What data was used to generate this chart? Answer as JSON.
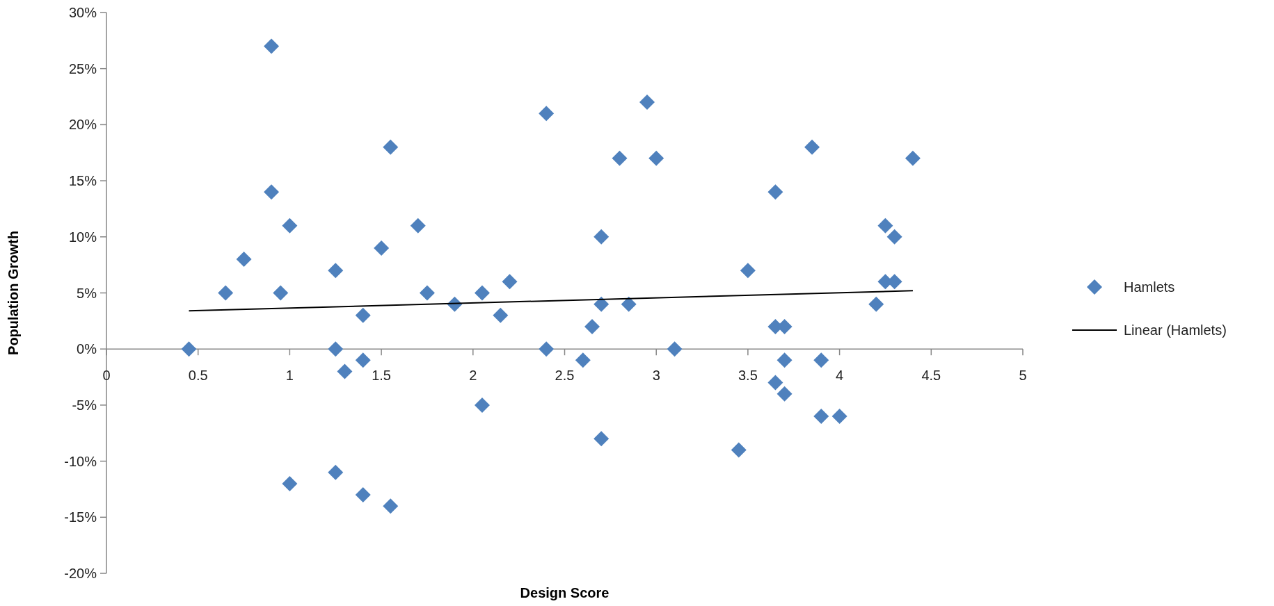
{
  "chart_data": {
    "type": "scatter",
    "xlabel": "Design Score",
    "ylabel": "Population Growth",
    "xlim": [
      0,
      5
    ],
    "xticks": [
      0,
      0.5,
      1,
      1.5,
      2,
      2.5,
      3,
      3.5,
      4,
      4.5,
      5
    ],
    "ylim": [
      -20,
      30
    ],
    "yticks": [
      {
        "value": -20,
        "label": "-20%"
      },
      {
        "value": -15,
        "label": "-15%"
      },
      {
        "value": -10,
        "label": "-10%"
      },
      {
        "value": -5,
        "label": "-5%"
      },
      {
        "value": 0,
        "label": "0%"
      },
      {
        "value": 5,
        "label": "5%"
      },
      {
        "value": 10,
        "label": "10%"
      },
      {
        "value": 15,
        "label": "15%"
      },
      {
        "value": 20,
        "label": "20%"
      },
      {
        "value": 25,
        "label": "25%"
      },
      {
        "value": 30,
        "label": "30%"
      }
    ],
    "legend": "right",
    "series": [
      {
        "name": "Hamlets",
        "marker": "diamond",
        "color": "#4f81bd",
        "x": [
          0.9,
          1.55,
          0.9,
          1.0,
          1.7,
          0.75,
          1.5,
          1.25,
          0.65,
          0.95,
          1.75,
          2.05,
          1.9,
          2.2,
          0.45,
          1.25,
          1.4,
          1.4,
          1.3,
          2.15,
          2.05,
          1.0,
          1.25,
          1.4,
          1.55,
          2.4,
          2.95,
          2.8,
          3.0,
          3.85,
          4.4,
          3.65,
          2.7,
          4.25,
          4.3,
          3.5,
          4.25,
          4.3,
          2.7,
          2.85,
          4.2,
          2.4,
          2.65,
          2.6,
          3.1,
          2.7,
          3.65,
          3.7,
          3.7,
          3.65,
          3.7,
          3.9,
          3.9,
          4.0,
          3.45
        ],
        "values": [
          27,
          18,
          14,
          11,
          11,
          8,
          9,
          7,
          5,
          5,
          5,
          5,
          4,
          6,
          0,
          0,
          3,
          -1,
          -2,
          3,
          -5,
          -12,
          -11,
          -13,
          -14,
          21,
          22,
          17,
          17,
          18,
          17,
          14,
          10,
          11,
          10,
          7,
          6,
          6,
          4,
          4,
          4,
          0,
          2,
          -1,
          0,
          -8,
          2,
          2,
          -1,
          -3,
          -4,
          -1,
          -6,
          -6,
          -9
        ]
      },
      {
        "name": "Linear (Hamlets)",
        "type": "line",
        "marker": "none",
        "line_style": "solid",
        "color": "#000000",
        "x": [
          0.45,
          4.4
        ],
        "values": [
          3.4,
          5.2
        ]
      }
    ]
  }
}
